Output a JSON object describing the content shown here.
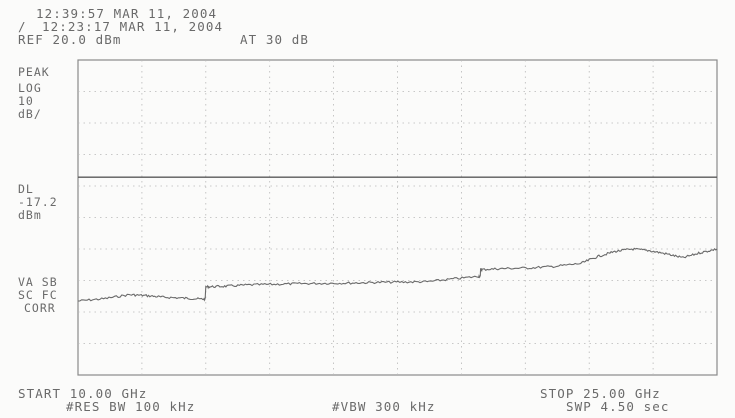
{
  "header": {
    "time_line": "12:39:57 MAR 11, 2004",
    "marker_symbol": "/",
    "marker_line": "12:23:17 MAR 11, 2004",
    "ref_level": "REF 20.0 dBm",
    "attenuation": "AT 30 dB"
  },
  "side_labels": {
    "detector": "PEAK",
    "scale_type": "LOG",
    "scale_value": "10",
    "scale_unit": "dB/",
    "display_line_label": "DL",
    "display_line_value": "-17.2",
    "display_line_unit": "dBm",
    "trace_modes_1": "VA SB",
    "trace_modes_2": "SC FC",
    "correction": "CORR"
  },
  "footer": {
    "start": "START 10.00 GHz",
    "stop": "STOP 25.00 GHz",
    "rbw": "#RES BW 100 kHz",
    "vbw": "#VBW 300 kHz",
    "sweep": "SWP 4.50 sec"
  },
  "chart_data": {
    "type": "line",
    "x_unit": "GHz",
    "y_unit": "dBm",
    "xlim": [
      10.0,
      25.0
    ],
    "ylim": [
      -80.0,
      20.0
    ],
    "grid": true,
    "grid_divisions": {
      "x": 10,
      "y": 10
    },
    "display_line": -17.2,
    "series": [
      {
        "x": [
          10.0,
          10.6,
          11.2,
          11.6,
          12.0,
          12.5,
          12.9,
          13.1,
          13.5,
          14.0,
          14.6,
          15.2,
          15.8,
          16.4,
          17.0,
          17.6,
          18.2,
          18.8,
          19.4,
          19.5,
          20.0,
          20.6,
          21.2,
          21.8,
          22.2,
          22.6,
          23.0,
          23.4,
          23.8,
          24.2,
          24.6,
          25.0
        ],
        "y": [
          -56.5,
          -55.8,
          -54.5,
          -54.8,
          -55.3,
          -55.6,
          -55.9,
          -52.0,
          -51.8,
          -51.4,
          -51.2,
          -51.0,
          -50.9,
          -50.8,
          -50.6,
          -50.5,
          -50.4,
          -49.5,
          -48.7,
          -46.5,
          -46.2,
          -46.0,
          -45.5,
          -44.6,
          -42.4,
          -40.8,
          -40.0,
          -40.5,
          -41.5,
          -42.8,
          -41.2,
          -40.0
        ]
      }
    ]
  }
}
